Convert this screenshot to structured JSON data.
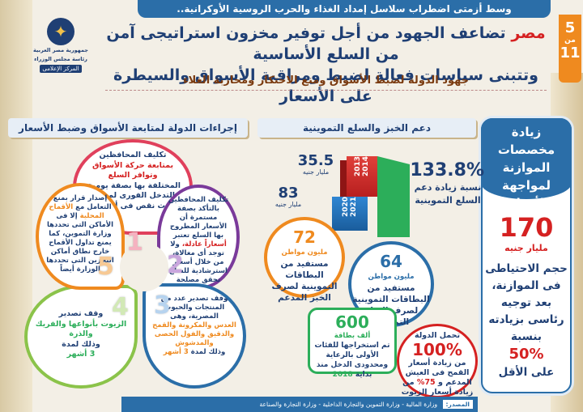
{
  "top_banner": "وسط أزمتى اضطراب سلاسل إمداد الغذاء والحرب الروسية الأوكرانية..",
  "page": {
    "current": "5",
    "of": "من",
    "total": "11"
  },
  "logo": {
    "line1": "جمهورية مصر العربية",
    "line2": "رئاسة مجلس الوزراء",
    "line3": "المركز الإعلامى"
  },
  "title": {
    "highlight": "مصر",
    "line1": "تضاعف الجهود من أجل توفير مخزون استراتيجى آمن من السلع الأساسية",
    "line2": "وتتبنى سياسات فعالة لضبط ومراقبة الأسواق والسيطرة على الأسعار"
  },
  "subtitle": "جهود الدولة لضبط الأسواق ومنع الاحتكار ومحاربة الغلاء",
  "section_left": "إجراءات الدولة لمتابعة الأسواق وضبط الأسعار",
  "section_mid": "دعم الخبز والسلع التموينية",
  "right": {
    "head": "زيادة مخصصات الموازنة لمواجهة الأزمات",
    "value": "170",
    "unit": "مليار جنيه",
    "text1": "حجم الاحتياطى فى الموازنة، بعد توجيه رئاسى بزيادته بنسبة",
    "pct": "50%",
    "text2": "على الأقل"
  },
  "bars": {
    "years_a": "2013 2014",
    "years_b": "2020 2021",
    "val_a": "35.5",
    "val_b": "83",
    "unit": "مليار جنيه",
    "growth": "133.8%",
    "growth_text": "نسبة زيادة دعم السلع التموينية"
  },
  "cards": {
    "c72": {
      "value": "72",
      "unit": "مليون مواطن",
      "text": "مستفيد من البطاقات التموينية لصرف الخبز المدعم"
    },
    "c64": {
      "value": "64",
      "unit": "مليون مواطن",
      "text": "مستفيد من البطاقات التموينية لصرف السلع التموينية"
    },
    "c600": {
      "value": "600",
      "unit": "ألف بطاقة",
      "text": "تم استخراجها للفئات الأولى بالرعاية ومحدودى الدخل منذ بداية",
      "year": "2018"
    },
    "c100": {
      "text1": "تحمل الدولة",
      "value": "100%",
      "text2": "من زيادة أسعار القمح فى العيش المدعم و",
      "pct2": "75%",
      "text3": "من زيادة أسعار الزيوت"
    }
  },
  "petals": {
    "p1": {
      "a": "تكليف المحافظين",
      "b": "بمتابعة حركة الأسواق وتوافر السلع",
      "c": "المختلفة بها بصفة يومية، والتدخل الفورى لمواجهة حدوث نقص فى أى سلعة"
    },
    "p2": {
      "a": "تكليف المحافظين بالتأكد بصفة مستمرة أن الأسعار المطروح بها السلع تعتبر",
      "b": "أسعاراً عادلة،",
      "c": "ولا توجد أى مغالاة، من خلال أسعار استرشادية للسلع تحقق مصلحة الجميع"
    },
    "p3": {
      "a": "وقف تصدير عدد من المنتجات والحبوب المصرية، وهى",
      "b": "العدس والمكرونة والقمح والدقيق والفول الحصى والمدشوش",
      "c": "وذلك لمدة",
      "d": "3 أشهر"
    },
    "p4": {
      "a": "وقف تصدير",
      "b": "الزيوت بأنواعها والفريك والذرة",
      "c": "وذلك لمدة",
      "d": "3 أشهر"
    },
    "p5": {
      "a": "إصدار قرار بمنع التعامل مع",
      "b": "الأقماح المحلية",
      "c": "إلا فى الأماكن التى تحددها وزارة التموين، كما يمنع تداول الأقماح خارج نطاق أماكن التخزين التى تحددها الوزارة أيضاً"
    },
    "nums": [
      "1",
      "2",
      "3",
      "4",
      "5"
    ]
  },
  "source": {
    "label": "المصدر:",
    "text": "وزارة المالية - وزارة التموين والتجارة الداخلية - وزارة التجارة والصناعة"
  },
  "colors": {
    "blue": "#2b6ea8",
    "navy": "#1f3f74",
    "red": "#d52121",
    "orange": "#ef8a1f",
    "green": "#2cae5a"
  }
}
